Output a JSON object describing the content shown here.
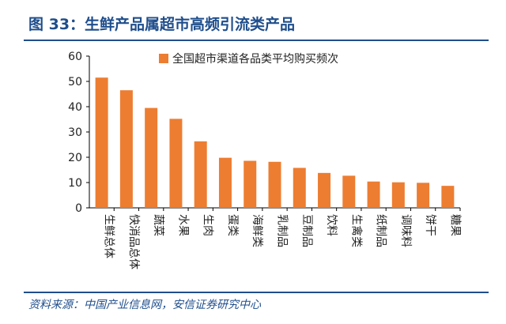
{
  "figure": {
    "title": "图 33：生鲜产品属超市高频引流类产品",
    "source": "资料来源：中国产业信息网，安信证券研究中心",
    "accent_color": "#1f4e8c"
  },
  "chart_data": {
    "type": "bar",
    "categories": [
      "生鲜总体",
      "快消品总体",
      "蔬菜",
      "水果",
      "生肉",
      "蛋类",
      "海鲜类",
      "乳制品",
      "豆制品",
      "饮料",
      "生禽类",
      "纸制品",
      "调味料",
      "饼干",
      "糖果"
    ],
    "series": [
      {
        "name": "全国超市渠道各品类平均购买频次",
        "color": "#ed7d31",
        "values": [
          51.5,
          46.5,
          39.5,
          35.2,
          26.3,
          19.8,
          18.6,
          18.2,
          15.8,
          13.8,
          12.7,
          10.4,
          10.1,
          9.9,
          8.7
        ]
      }
    ],
    "ylim": [
      0,
      60
    ],
    "yticks": [
      0,
      10,
      20,
      30,
      40,
      50,
      60
    ],
    "grid": false,
    "legend_position": "top"
  }
}
